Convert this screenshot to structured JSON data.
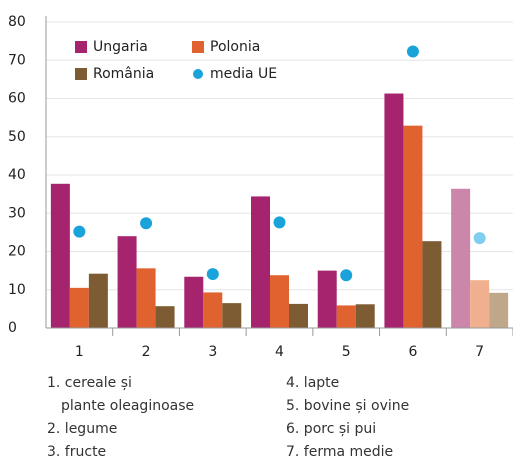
{
  "chart_data": {
    "type": "bar",
    "categories": [
      "1",
      "2",
      "3",
      "4",
      "5",
      "6",
      "7"
    ],
    "series": [
      {
        "name": "Ungaria",
        "type": "bar",
        "color": "#a6246e",
        "colors": [
          "#a6246e",
          "#a6246e",
          "#a6246e",
          "#a6246e",
          "#a6246e",
          "#a6246e",
          "#cc86aa"
        ],
        "values": [
          37.7,
          24,
          13.4,
          34.4,
          15,
          61.3,
          36.4
        ]
      },
      {
        "name": "Polonia",
        "type": "bar",
        "color": "#e0622f",
        "colors": [
          "#e0622f",
          "#e0622f",
          "#e0622f",
          "#e0622f",
          "#e0622f",
          "#e0622f",
          "#f0b090"
        ],
        "values": [
          10.5,
          15.6,
          9.3,
          13.8,
          5.9,
          52.9,
          12.5
        ]
      },
      {
        "name": "România",
        "type": "bar",
        "color": "#7d5c33",
        "colors": [
          "#7d5c33",
          "#7d5c33",
          "#7d5c33",
          "#7d5c33",
          "#7d5c33",
          "#7d5c33",
          "#bfa88a"
        ],
        "values": [
          14.2,
          5.7,
          6.5,
          6.3,
          6.2,
          22.7,
          9.2
        ]
      },
      {
        "name": "media UE",
        "type": "scatter",
        "color": "#1aa3db",
        "colors": [
          "#1aa3db",
          "#1aa3db",
          "#1aa3db",
          "#1aa3db",
          "#1aa3db",
          "#1aa3db",
          "#7fcdef"
        ],
        "values": [
          25.2,
          27.4,
          14.1,
          27.6,
          13.8,
          72.3,
          23.5
        ]
      }
    ],
    "ylim": [
      0,
      80
    ],
    "yticks": [
      0,
      10,
      20,
      30,
      40,
      50,
      60,
      70,
      80
    ],
    "grid": true,
    "legend": "top-left",
    "notes": [
      [
        "1. cereale și",
        "plante oleaginoase",
        "2. legume",
        "3. fructe"
      ],
      [
        "4. lapte",
        "5. bovine și ovine",
        "6. porc și pui",
        "7. ferma medie"
      ]
    ]
  }
}
